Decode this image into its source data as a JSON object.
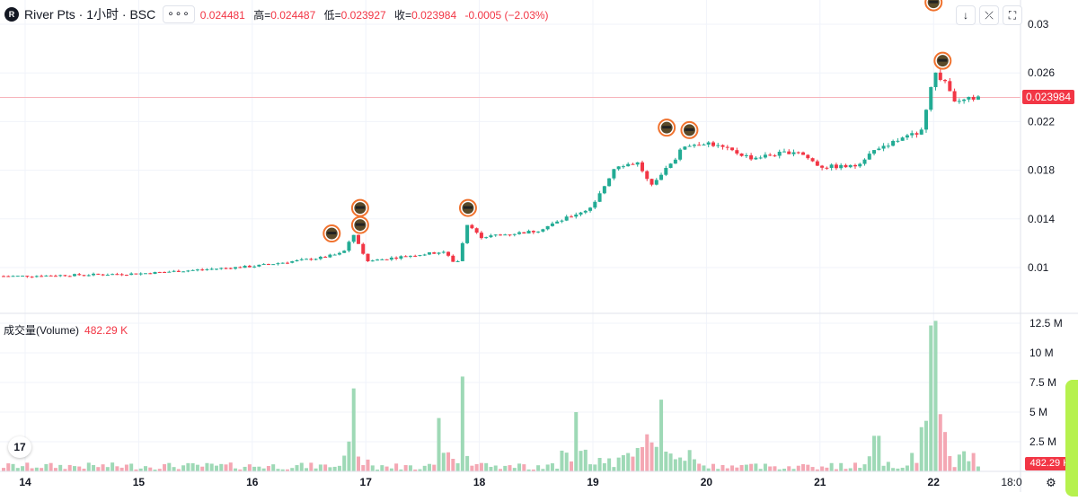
{
  "header": {
    "symbol_badge": "R",
    "symbol_title": "River Pts · 1小时 · BSC",
    "more_label": "∘∘∘",
    "open_value": "0.024481",
    "high_label": "高=",
    "high_value": "0.024487",
    "low_label": "低=",
    "low_value": "0.023927",
    "close_label": "收=",
    "close_value": "0.023984",
    "change_value": "-0.0005 (−2.03%)"
  },
  "toolbar": {
    "down_icon": "arrow-down-icon",
    "down_glyph": "↓",
    "collapse_icon": "collapse-icon",
    "collapse_glyph": "⤫",
    "fullscreen_icon": "fullscreen-icon",
    "fullscreen_glyph": "⛶"
  },
  "price_axis": {
    "labels": [
      "0.03",
      "0.026",
      "0.022",
      "0.018",
      "0.014",
      "0.01"
    ],
    "current_price": "0.023984"
  },
  "volume_panel": {
    "title": "成交量(Volume)",
    "value": "482.29 K",
    "axis_labels": [
      "12.5 M",
      "10 M",
      "7.5 M",
      "5 M",
      "2.5 M"
    ],
    "current_tag": "482.29 K"
  },
  "time_axis": {
    "labels": [
      "14",
      "15",
      "16",
      "17",
      "18",
      "19",
      "20",
      "21",
      "22",
      "18:0"
    ]
  },
  "logo": {
    "text": "17"
  },
  "settings_icon": "gear-icon",
  "settings_glyph": "⚙",
  "colors": {
    "up": "#26a69a",
    "up_candle": "#22ab94",
    "down": "#f23645",
    "up_volume": "#9ed9b6",
    "down_volume": "#f4a7b3",
    "price_line": "#f7b3bb",
    "grid": "#f0f3fa",
    "side_pill": "#b6f14e"
  },
  "chart_data": {
    "type": "candlestick",
    "title": "River Pts · 1小时 · BSC",
    "x_ticks": [
      "14",
      "15",
      "16",
      "17",
      "18",
      "19",
      "20",
      "21",
      "22",
      "18:0"
    ],
    "y_ticks": [
      0.01,
      0.014,
      0.018,
      0.022,
      0.026,
      0.03
    ],
    "ylim": [
      0.0065,
      0.0323
    ],
    "last_price": 0.023984,
    "price_key_points": [
      {
        "x": 0,
        "price": 0.0092
      },
      {
        "x": 14,
        "price": 0.0093
      },
      {
        "x": 15,
        "price": 0.0095
      },
      {
        "x": 16,
        "price": 0.0101
      },
      {
        "x": 16.6,
        "price": 0.0108
      },
      {
        "x": 16.8,
        "price": 0.0112
      },
      {
        "x": 16.9,
        "price": 0.0128
      },
      {
        "x": 17,
        "price": 0.0105
      },
      {
        "x": 17.4,
        "price": 0.011
      },
      {
        "x": 17.7,
        "price": 0.0113
      },
      {
        "x": 17.8,
        "price": 0.0101
      },
      {
        "x": 17.9,
        "price": 0.0138
      },
      {
        "x": 18,
        "price": 0.0125
      },
      {
        "x": 18.5,
        "price": 0.013
      },
      {
        "x": 19,
        "price": 0.015
      },
      {
        "x": 19.2,
        "price": 0.0184
      },
      {
        "x": 19.4,
        "price": 0.0186
      },
      {
        "x": 19.5,
        "price": 0.0168
      },
      {
        "x": 19.7,
        "price": 0.0186
      },
      {
        "x": 19.8,
        "price": 0.02
      },
      {
        "x": 20,
        "price": 0.0203
      },
      {
        "x": 20.4,
        "price": 0.019
      },
      {
        "x": 20.8,
        "price": 0.0196
      },
      {
        "x": 21,
        "price": 0.0183
      },
      {
        "x": 21.3,
        "price": 0.0183
      },
      {
        "x": 21.5,
        "price": 0.0198
      },
      {
        "x": 21.9,
        "price": 0.0212
      },
      {
        "x": 22,
        "price": 0.0261
      },
      {
        "x": 22.1,
        "price": 0.0252
      },
      {
        "x": 22.2,
        "price": 0.0235
      },
      {
        "x": 22.4,
        "price": 0.0241
      }
    ],
    "event_markers": [
      {
        "x": 16.7,
        "price": 0.0128
      },
      {
        "x": 16.95,
        "price": 0.0149
      },
      {
        "x": 16.95,
        "price": 0.0135
      },
      {
        "x": 17.9,
        "price": 0.0149
      },
      {
        "x": 19.65,
        "price": 0.0215
      },
      {
        "x": 19.85,
        "price": 0.0213
      },
      {
        "x": 22.0,
        "price": 0.0318
      },
      {
        "x": 22.08,
        "price": 0.027
      }
    ],
    "volume": {
      "y_ticks": [
        "2.5 M",
        "5 M",
        "7.5 M",
        "10 M",
        "12.5 M"
      ],
      "ylim": [
        0,
        12.5
      ],
      "last_volume_k": 482.29,
      "spikes_m": [
        {
          "x": 16.9,
          "value": 7.0,
          "dir": "down"
        },
        {
          "x": 17.65,
          "value": 4.5,
          "dir": "down"
        },
        {
          "x": 17.85,
          "value": 8.0,
          "dir": "up"
        },
        {
          "x": 18.85,
          "value": 5.0,
          "dir": "up"
        },
        {
          "x": 19.6,
          "value": 4.7,
          "dir": "up"
        },
        {
          "x": 21.5,
          "value": 3.0,
          "dir": "up"
        },
        {
          "x": 22.0,
          "value": 11.9,
          "dir": "down"
        }
      ]
    }
  }
}
